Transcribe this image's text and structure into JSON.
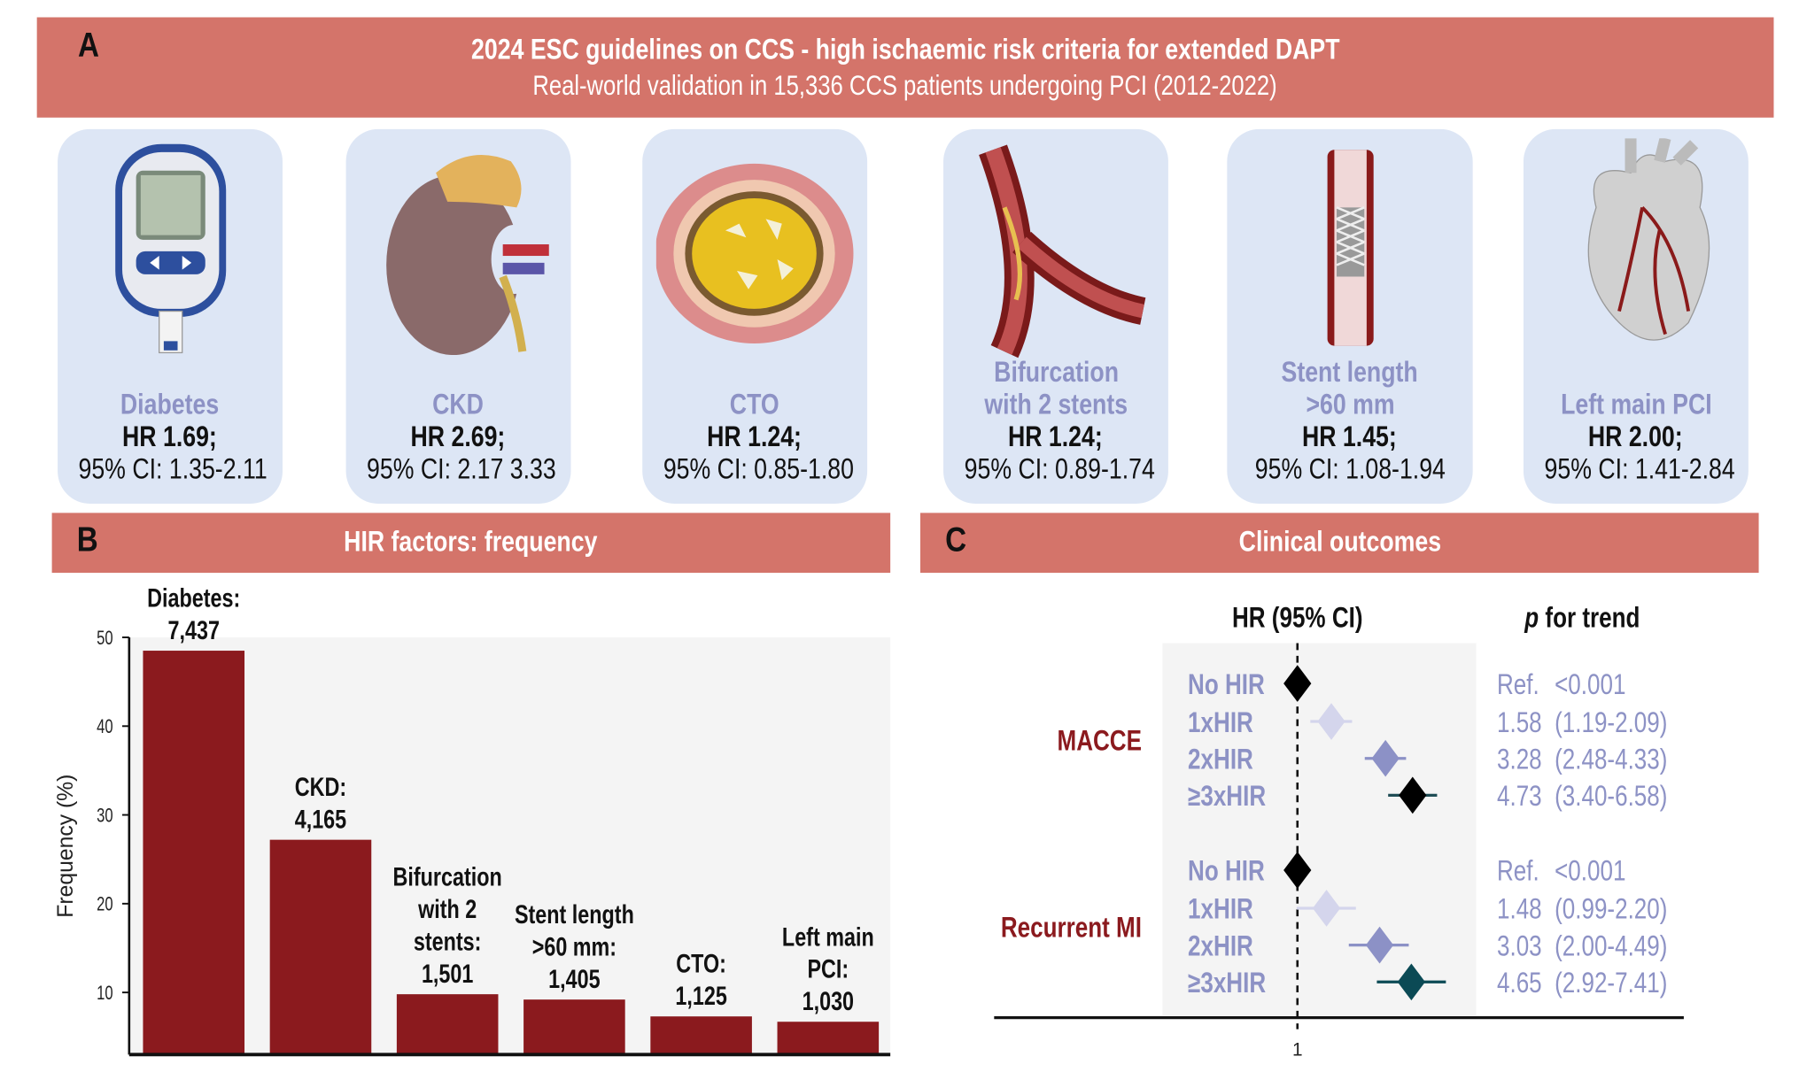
{
  "banner": {
    "letter": "A",
    "title": "2024 ESC guidelines on CCS - high ischaemic risk criteria for extended DAPT",
    "subtitle": "Real-world validation in 15,336 CCS patients undergoing PCI (2012-2022)"
  },
  "cards": [
    {
      "icon": "glucometer-icon",
      "name": [
        "Diabetes"
      ],
      "hr": "HR 1.69;",
      "ci": "95% CI: 1.35-2.11"
    },
    {
      "icon": "kidney-icon",
      "name": [
        "CKD"
      ],
      "hr": "HR 2.69;",
      "ci": "95% CI: 2.17 3.33"
    },
    {
      "icon": "occluded-artery-icon",
      "name": [
        "CTO"
      ],
      "hr": "HR 1.24;",
      "ci": "95% CI: 0.85-1.80"
    },
    {
      "icon": "bifurcation-icon",
      "name": [
        "Bifurcation",
        "with 2 stents"
      ],
      "hr": "HR 1.24;",
      "ci": "95% CI: 0.89-1.74"
    },
    {
      "icon": "stent-icon",
      "name": [
        "Stent length",
        ">60 mm"
      ],
      "hr": "HR 1.45;",
      "ci": "95% CI: 1.08-1.94"
    },
    {
      "icon": "heart-icon",
      "name": [
        "Left main PCI"
      ],
      "hr": "HR 2.00;",
      "ci": "95% CI: 1.41-2.84"
    }
  ],
  "sectionB": {
    "letter": "B",
    "title": "HIR factors: frequency"
  },
  "sectionC": {
    "letter": "C",
    "title": "Clinical outcomes"
  },
  "chart_data": [
    {
      "type": "bar",
      "title": "HIR factors: frequency",
      "ylabel": "Frequency (%)",
      "ylim": [
        3,
        50
      ],
      "yticks": [
        10,
        20,
        30,
        40,
        50
      ],
      "bar_color": "#8b1a1e",
      "categories": [
        "Diabetes",
        "CKD",
        "Bifurcation with 2 stents",
        "Stent length >60 mm",
        "CTO",
        "Left main PCI"
      ],
      "values": [
        48.5,
        27.2,
        9.8,
        9.2,
        7.3,
        6.7
      ],
      "data_labels": [
        [
          "Diabetes:",
          "7,437"
        ],
        [
          "CKD:",
          "4,165"
        ],
        [
          "Bifurcation",
          "with 2",
          "stents:",
          "1,501"
        ],
        [
          "Stent length",
          ">60 mm:",
          "1,405"
        ],
        [
          "CTO:",
          "1,125"
        ],
        [
          "Left main",
          "PCI:",
          "1,030"
        ]
      ]
    },
    {
      "type": "forest",
      "title": "Clinical outcomes",
      "col_hr": "HR (95% CI)",
      "col_p_italic": "p",
      "col_p": " for trend",
      "x_scale": "log",
      "reference_line": 1,
      "xtick_labels": [
        "1"
      ],
      "groups": [
        {
          "name": "MACCE",
          "rows": [
            {
              "label": "No HIR",
              "hr": 1,
              "lo": 1,
              "hi": 1,
              "text_hr": "Ref.",
              "text_ci": "<0.001",
              "color": "#000000"
            },
            {
              "label": "1xHIR",
              "hr": 1.58,
              "lo": 1.19,
              "hi": 2.09,
              "text_hr": "1.58",
              "text_ci": "(1.19-2.09)",
              "color": "#d4d5ec"
            },
            {
              "label": "2xHIR",
              "hr": 3.28,
              "lo": 2.48,
              "hi": 4.33,
              "text_hr": "3.28",
              "text_ci": "(2.48-4.33)",
              "color": "#8c91c6"
            },
            {
              "label": "≥3xHIR",
              "hr": 4.73,
              "lo": 3.4,
              "hi": 6.58,
              "text_hr": "4.73",
              "text_ci": "(3.40-6.58)",
              "color": "#000000"
            }
          ]
        },
        {
          "name": "Recurrent MI",
          "rows": [
            {
              "label": "No HIR",
              "hr": 1,
              "lo": 1,
              "hi": 1,
              "text_hr": "Ref.",
              "text_ci": "<0.001",
              "color": "#000000"
            },
            {
              "label": "1xHIR",
              "hr": 1.48,
              "lo": 0.99,
              "hi": 2.2,
              "text_hr": "1.48",
              "text_ci": "(0.99-2.20)",
              "color": "#d4d5ec"
            },
            {
              "label": "2xHIR",
              "hr": 3.03,
              "lo": 2.0,
              "hi": 4.49,
              "text_hr": "3.03",
              "text_ci": "(2.00-4.49)",
              "color": "#8c91c6"
            },
            {
              "label": "≥3xHIR",
              "hr": 4.65,
              "lo": 2.92,
              "hi": 7.41,
              "text_hr": "4.65",
              "text_ci": "(2.92-7.41)",
              "color": "#0b4a55"
            }
          ]
        }
      ]
    }
  ],
  "colors": {
    "band": "#d4746a",
    "card": "#dde6f5",
    "label_lavender": "#8d92c5",
    "group_red": "#8b1a1e"
  }
}
